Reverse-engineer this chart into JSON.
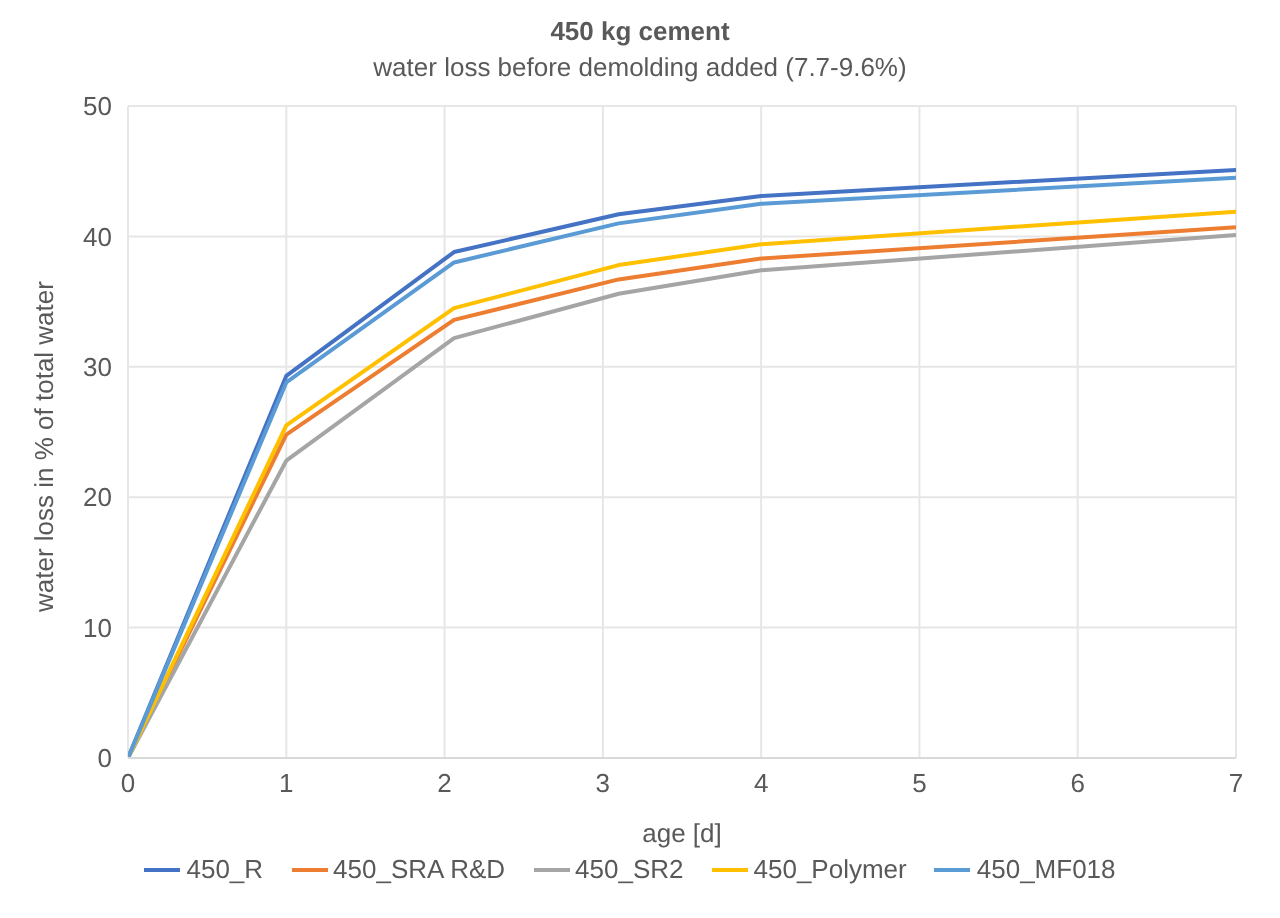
{
  "chart_data": {
    "type": "line",
    "title": "450 kg cement",
    "subtitle": "water loss  before demolding added (7.7-9.6%)",
    "xlabel": "age [d]",
    "ylabel": "water loss in % of total water",
    "x": [
      0,
      1,
      2.06,
      3.1,
      4,
      7
    ],
    "series": [
      {
        "name": "450_R",
        "color": "#4472c4",
        "values": [
          0,
          29.3,
          38.8,
          41.7,
          43.1,
          45.1
        ]
      },
      {
        "name": "450_SRA R&D",
        "color": "#ed7d31",
        "values": [
          0,
          24.8,
          33.6,
          36.7,
          38.3,
          40.7
        ]
      },
      {
        "name": "450_SR2",
        "color": "#a5a5a5",
        "values": [
          0,
          22.8,
          32.2,
          35.6,
          37.4,
          40.1
        ]
      },
      {
        "name": "450_Polymer",
        "color": "#ffc000",
        "values": [
          0,
          25.5,
          34.5,
          37.8,
          39.4,
          41.9
        ]
      },
      {
        "name": "450_MF018",
        "color": "#5b9bd5",
        "values": [
          0,
          28.8,
          38.0,
          41.0,
          42.5,
          44.5
        ]
      }
    ],
    "xlim": [
      0,
      7
    ],
    "xticks": [
      0,
      1,
      2,
      3,
      4,
      5,
      6,
      7
    ],
    "ylim": [
      0,
      50
    ],
    "yticks": [
      0,
      10,
      20,
      30,
      40,
      50
    ],
    "grid": true,
    "legend": "bottom",
    "marker": "none",
    "line_style": "solid"
  }
}
